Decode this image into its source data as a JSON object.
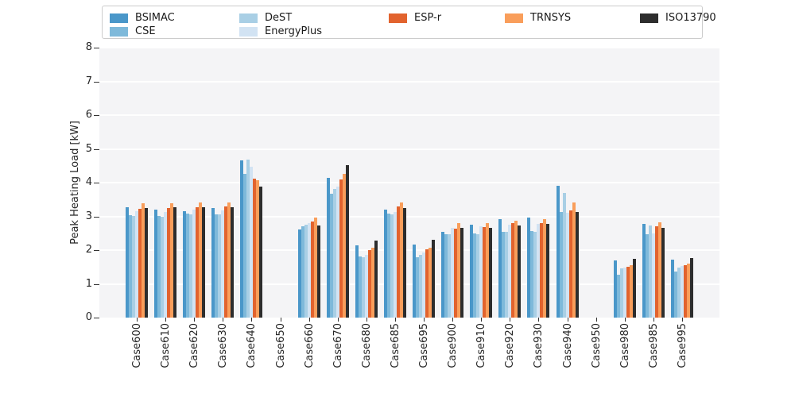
{
  "chart_data": {
    "type": "bar",
    "title": "",
    "xlabel": "",
    "ylabel": "Peak Heating Load [kW]",
    "ylim": [
      0,
      8
    ],
    "yticks": [
      0,
      1,
      2,
      3,
      4,
      5,
      6,
      7,
      8
    ],
    "grid": true,
    "legend_position": "top",
    "xtick_rotation": 90,
    "plot_background": "#f4f4f6",
    "grid_color": "#ffffff",
    "categories": [
      "Case600",
      "Case610",
      "Case620",
      "Case630",
      "Case640",
      "Case650",
      "Case660",
      "Case670",
      "Case680",
      "Case685",
      "Case695",
      "Case900",
      "Case910",
      "Case920",
      "Case930",
      "Case940",
      "Case950",
      "Case980",
      "Case985",
      "Case995"
    ],
    "series": [
      {
        "name": "BSIMAC",
        "color": "#4a97c9",
        "values": [
          3.26,
          3.21,
          3.16,
          3.25,
          4.66,
          0,
          2.61,
          4.14,
          2.14,
          3.21,
          2.16,
          2.54,
          2.75,
          2.92,
          2.96,
          3.91,
          0,
          1.7,
          2.77,
          1.71
        ]
      },
      {
        "name": "CSE",
        "color": "#7eb9da",
        "values": [
          3.04,
          3.0,
          3.09,
          3.07,
          4.26,
          0,
          2.71,
          3.67,
          1.82,
          3.08,
          1.78,
          2.48,
          2.5,
          2.55,
          2.57,
          3.14,
          0,
          1.26,
          2.48,
          1.36
        ]
      },
      {
        "name": "DeST",
        "color": "#a9cfe5",
        "values": [
          3.02,
          2.99,
          3.07,
          3.05,
          4.69,
          0,
          2.75,
          3.81,
          1.79,
          3.05,
          1.85,
          2.46,
          2.48,
          2.53,
          2.55,
          3.7,
          0,
          1.45,
          2.73,
          1.48
        ]
      },
      {
        "name": "EnergyPlus",
        "color": "#d2e3f3",
        "values": [
          3.16,
          3.14,
          3.2,
          3.18,
          4.48,
          0,
          2.81,
          3.88,
          1.87,
          3.14,
          1.93,
          2.67,
          2.71,
          2.75,
          2.77,
          3.11,
          0,
          1.48,
          2.5,
          1.52
        ]
      },
      {
        "name": "ESP-r",
        "color": "#e2632e",
        "values": [
          3.22,
          3.25,
          3.28,
          3.3,
          4.11,
          0,
          2.85,
          4.09,
          2.0,
          3.3,
          2.02,
          2.63,
          2.69,
          2.79,
          2.81,
          3.17,
          0,
          1.5,
          2.71,
          1.55
        ]
      },
      {
        "name": "TRNSYS",
        "color": "#f99e5b",
        "values": [
          3.38,
          3.38,
          3.4,
          3.42,
          4.07,
          0,
          2.96,
          4.25,
          2.08,
          3.4,
          2.07,
          2.81,
          2.81,
          2.87,
          2.91,
          3.4,
          0,
          1.55,
          2.82,
          1.6
        ]
      },
      {
        "name": "ISO13790",
        "color": "#2d2d2d",
        "values": [
          3.25,
          3.28,
          3.26,
          3.28,
          3.89,
          0,
          2.73,
          4.52,
          2.28,
          3.24,
          2.3,
          2.65,
          2.67,
          2.74,
          2.77,
          3.12,
          0,
          1.75,
          2.65,
          1.76
        ]
      }
    ]
  }
}
